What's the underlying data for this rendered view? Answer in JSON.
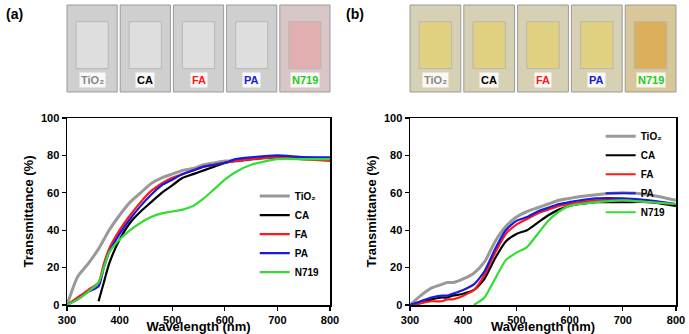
{
  "chart_data": [
    {
      "type": "line",
      "title": "(a)",
      "x_label": "Wavelength (nm)",
      "y_label": "Transmittance (%)",
      "x": [
        300,
        320,
        340,
        360,
        370,
        380,
        400,
        420,
        440,
        460,
        480,
        500,
        520,
        540,
        560,
        580,
        600,
        620,
        650,
        700,
        750,
        800
      ],
      "series": [
        {
          "name": "TiO₂",
          "color": "#999999",
          "values": [
            0,
            15,
            22,
            30,
            35,
            40,
            48,
            55,
            60,
            65,
            68,
            70,
            72,
            73,
            75,
            76,
            77,
            77,
            78,
            79,
            78,
            78
          ]
        },
        {
          "name": "CA",
          "color": "#000000",
          "values": [
            null,
            null,
            null,
            2,
            12,
            22,
            35,
            44,
            50,
            55,
            60,
            64,
            68,
            70,
            72,
            74,
            76,
            77,
            78,
            79,
            79,
            78
          ]
        },
        {
          "name": "FA",
          "color": "#ff1a1a",
          "values": [
            0,
            4,
            8,
            12,
            22,
            30,
            40,
            48,
            55,
            61,
            65,
            68,
            70,
            72,
            74,
            75,
            76,
            77,
            78,
            79,
            78,
            77
          ]
        },
        {
          "name": "PA",
          "color": "#1a1adb",
          "values": [
            0,
            3,
            7,
            10,
            20,
            28,
            38,
            46,
            53,
            59,
            64,
            67,
            70,
            72,
            74,
            75,
            76,
            78,
            79,
            80,
            79,
            79
          ]
        },
        {
          "name": "N719",
          "color": "#33dd33",
          "values": [
            0,
            3,
            7,
            12,
            20,
            28,
            35,
            40,
            44,
            47,
            49,
            50,
            51,
            53,
            57,
            62,
            67,
            71,
            75,
            78,
            78,
            78
          ]
        }
      ],
      "xlim": [
        300,
        800
      ],
      "xticks": [
        300,
        400,
        500,
        600,
        700,
        800
      ],
      "ylim": [
        0,
        100
      ],
      "yticks": [
        0,
        20,
        40,
        60,
        80,
        100
      ],
      "legend": "center right",
      "annotations": [
        {
          "text": "TiO₂",
          "color": "#888888"
        },
        {
          "text": "CA",
          "color": "#000000"
        },
        {
          "text": "FA",
          "color": "#ff1a1a"
        },
        {
          "text": "PA",
          "color": "#1a1adb"
        },
        {
          "text": "N719",
          "color": "#22cc22"
        }
      ]
    },
    {
      "type": "line",
      "title": "(b)",
      "x_label": "Wavelength (nm)",
      "y_label": "Transmittance (%)",
      "x": [
        300,
        320,
        340,
        360,
        370,
        380,
        400,
        420,
        440,
        460,
        480,
        500,
        520,
        540,
        560,
        580,
        600,
        620,
        650,
        700,
        750,
        800
      ],
      "series": [
        {
          "name": "TiO₂",
          "color": "#999999",
          "values": [
            0,
            5,
            9,
            11,
            12,
            12,
            14,
            17,
            23,
            34,
            42,
            47,
            50,
            52,
            54,
            56,
            57,
            58,
            59,
            60,
            59,
            56
          ]
        },
        {
          "name": "CA",
          "color": "#000000",
          "values": [
            0,
            1,
            3,
            4,
            4,
            5,
            6,
            8,
            14,
            25,
            34,
            38,
            40,
            44,
            48,
            51,
            53,
            54,
            55,
            55,
            55,
            53
          ]
        },
        {
          "name": "FA",
          "color": "#ff1a1a",
          "values": [
            0,
            1,
            2,
            2,
            3,
            3,
            5,
            8,
            16,
            28,
            38,
            43,
            46,
            49,
            51,
            53,
            54,
            55,
            56,
            56,
            55,
            54
          ]
        },
        {
          "name": "PA",
          "color": "#1a1adb",
          "values": [
            0,
            2,
            4,
            5,
            5,
            6,
            8,
            11,
            18,
            30,
            40,
            45,
            47,
            50,
            52,
            54,
            55,
            56,
            57,
            57,
            56,
            54
          ]
        },
        {
          "name": "N719",
          "color": "#33dd33",
          "values": [
            null,
            null,
            null,
            null,
            null,
            null,
            null,
            0,
            4,
            14,
            24,
            28,
            31,
            38,
            45,
            50,
            53,
            54,
            55,
            56,
            55,
            54
          ]
        }
      ],
      "xlim": [
        300,
        800
      ],
      "xticks": [
        300,
        400,
        500,
        600,
        700,
        800
      ],
      "ylim": [
        0,
        100
      ],
      "yticks": [
        0,
        20,
        40,
        60,
        80,
        100
      ],
      "legend": "upper right",
      "annotations": [
        {
          "text": "TiO₂",
          "color": "#888888"
        },
        {
          "text": "CA",
          "color": "#000000"
        },
        {
          "text": "FA",
          "color": "#ff1a1a"
        },
        {
          "text": "PA",
          "color": "#1a1adb"
        },
        {
          "text": "N719",
          "color": "#22cc22"
        }
      ]
    }
  ]
}
